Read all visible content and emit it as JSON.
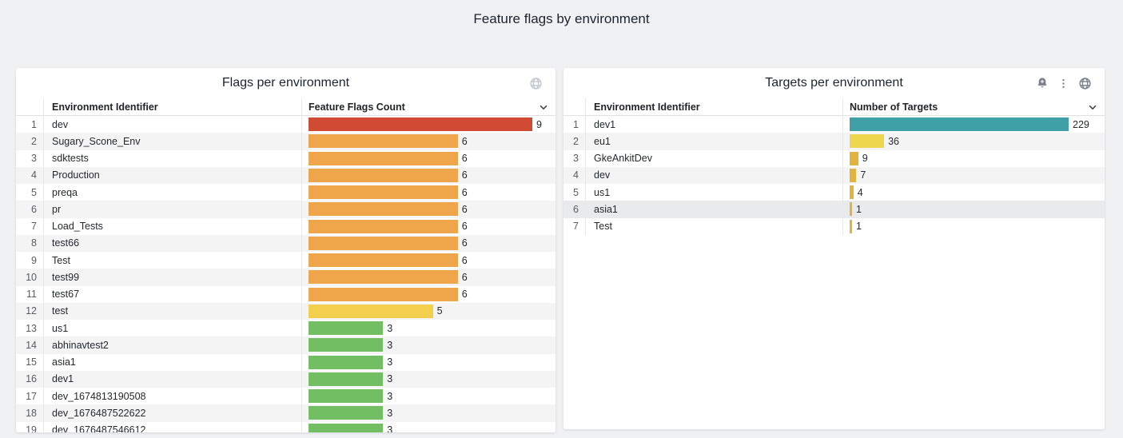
{
  "page": {
    "title": "Feature flags by environment"
  },
  "chart_data": [
    {
      "type": "bar",
      "orientation": "horizontal",
      "title": "Flags per environment",
      "columns": [
        "Environment Identifier",
        "Feature Flags Count"
      ],
      "categories": [
        "dev",
        "Sugary_Scone_Env",
        "sdktests",
        "Production",
        "preqa",
        "pr",
        "Load_Tests",
        "test66",
        "Test",
        "test99",
        "test67",
        "test",
        "us1",
        "abhinavtest2",
        "asia1",
        "dev1",
        "dev_1674813190508",
        "dev_1676487522622",
        "dev_1676487546612"
      ],
      "values": [
        9,
        6,
        6,
        6,
        6,
        6,
        6,
        6,
        6,
        6,
        6,
        5,
        3,
        3,
        3,
        3,
        3,
        3,
        3
      ],
      "bar_colors": [
        "#d04a34",
        "#efa64b",
        "#efa64b",
        "#efa64b",
        "#efa64b",
        "#efa64b",
        "#efa64b",
        "#efa64b",
        "#efa64b",
        "#efa64b",
        "#efa64b",
        "#f2d04e",
        "#72bf63",
        "#72bf63",
        "#72bf63",
        "#72bf63",
        "#72bf63",
        "#72bf63",
        "#72bf63"
      ],
      "xlim": [
        0,
        9
      ],
      "legend": false,
      "grid": false
    },
    {
      "type": "bar",
      "orientation": "horizontal",
      "title": "Targets per environment",
      "columns": [
        "Environment Identifier",
        "Number of Targets"
      ],
      "categories": [
        "dev1",
        "eu1",
        "GkeAnkitDev",
        "dev",
        "us1",
        "asia1",
        "Test"
      ],
      "values": [
        229,
        36,
        9,
        7,
        4,
        1,
        1
      ],
      "bar_colors": [
        "#3fa0a8",
        "#ecd74e",
        "#e2b33f",
        "#e2b33f",
        "#e2b33f",
        "#e2b33f",
        "#e2b33f"
      ],
      "xlim": [
        0,
        229
      ],
      "legend": false,
      "grid": false
    }
  ],
  "panels": [
    {
      "header_icons": [
        "globe-icon"
      ]
    },
    {
      "header_icons": [
        "bell-plus-icon",
        "kebab-menu-icon",
        "globe-icon"
      ],
      "highlighted_row": 6
    }
  ],
  "colors": {
    "red": "#d04a34",
    "orange": "#efa64b",
    "yellow": "#f2d04e",
    "green": "#72bf63",
    "teal": "#3fa0a8",
    "bright_yellow": "#ecd74e",
    "amber": "#e2b33f"
  }
}
